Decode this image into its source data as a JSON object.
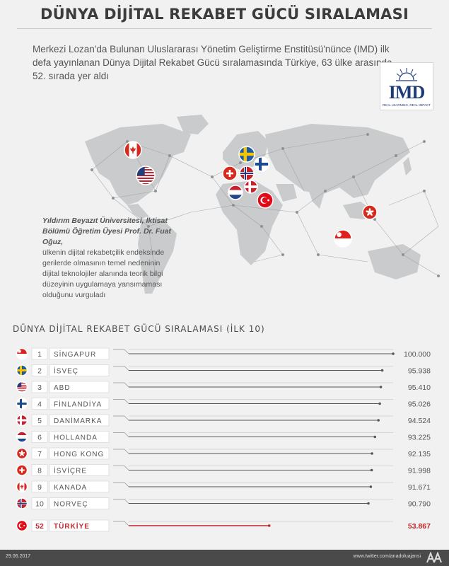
{
  "title": "DÜNYA DİJİTAL REKABET GÜCÜ SIRALAMASI",
  "intro": "Merkezi Lozan'da Bulunan Uluslararası Yönetim Geliştirme Enstitüsü'nünce (IMD) ilk defa yayınlanan Dünya Dijital Rekabet Gücü sıralamasında Türkiye, 63 ülke arasında 52. sırada yer aldı",
  "logo": {
    "text": "IMD",
    "tagline": "REAL LEARNING. REAL IMPACT"
  },
  "quote": {
    "author": "Yıldırım Beyazıt Üniversitesi, İktisat Bölümü Öğretim Üyesi Prof. Dr. Fuat Oğuz,",
    "body": "ülkenin dijital rekabetçilik endeksinde gerilerde olmasının temel nedeninin dijital teknolojiler alanında teorik bilgi düzeyinin uygulamaya yansımaması olduğunu vurguladı"
  },
  "map_flags": [
    "canada-flag-icon",
    "usa-flag-icon",
    "sweden-flag-icon",
    "finland-flag-icon",
    "switzerland-flag-icon",
    "norway-flag-icon",
    "denmark-flag-icon",
    "netherlands-flag-icon",
    "turkey-flag-icon",
    "hong-kong-flag-icon",
    "singapore-flag-icon"
  ],
  "chart_title": "DÜNYA DİJİTAL REKABET GÜCÜ SIRALAMASI (İLK 10)",
  "chart_data": {
    "type": "bar",
    "title": "DÜNYA DİJİTAL REKABET GÜCÜ SIRALAMASI (İLK 10)",
    "rows": [
      {
        "rank": "1",
        "country": "SİNGAPUR",
        "value": 100.0,
        "label": "100.000",
        "flag": "singapore"
      },
      {
        "rank": "2",
        "country": "İSVEÇ",
        "value": 95.938,
        "label": "95.938",
        "flag": "sweden"
      },
      {
        "rank": "3",
        "country": "ABD",
        "value": 95.41,
        "label": "95.410",
        "flag": "usa"
      },
      {
        "rank": "4",
        "country": "FİNLANDİYA",
        "value": 95.026,
        "label": "95.026",
        "flag": "finland"
      },
      {
        "rank": "5",
        "country": "DANİMARKA",
        "value": 94.524,
        "label": "94.524",
        "flag": "denmark"
      },
      {
        "rank": "6",
        "country": "HOLLANDA",
        "value": 93.225,
        "label": "93.225",
        "flag": "netherlands"
      },
      {
        "rank": "7",
        "country": "HONG KONG",
        "value": 92.135,
        "label": "92.135",
        "flag": "hongkong"
      },
      {
        "rank": "8",
        "country": "İSVİÇRE",
        "value": 91.998,
        "label": "91.998",
        "flag": "switzerland"
      },
      {
        "rank": "9",
        "country": "KANADA",
        "value": 91.671,
        "label": "91.671",
        "flag": "canada"
      },
      {
        "rank": "10",
        "country": "NORVEÇ",
        "value": 90.79,
        "label": "90.790",
        "flag": "norway"
      }
    ],
    "highlight": {
      "rank": "52",
      "country": "TÜRKİYE",
      "value": 53.867,
      "label": "53.867",
      "flag": "turkey"
    },
    "colors": {
      "normal": "#555555",
      "highlight": "#c0272d"
    }
  },
  "footer": {
    "date": "29.06.2017",
    "twitter": "www.twitter.com/anadoluajansi"
  }
}
